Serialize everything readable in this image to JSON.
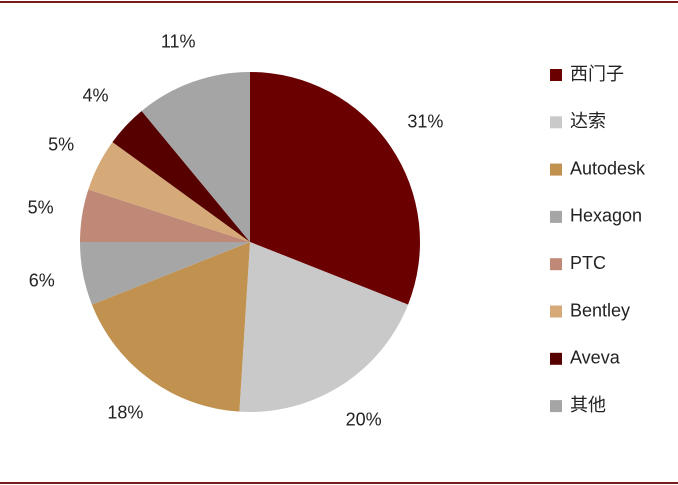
{
  "chart_data": {
    "type": "pie",
    "categories": [
      "西门子",
      "达索",
      "Autodesk",
      "Hexagon",
      "PTC",
      "Bentley",
      "Aveva",
      "其他"
    ],
    "values": [
      31,
      20,
      18,
      6,
      5,
      5,
      4,
      11
    ],
    "value_labels": [
      "31%",
      "20%",
      "18%",
      "6%",
      "5%",
      "5%",
      "4%",
      "11%"
    ],
    "colors": [
      "#6b0000",
      "#c9c9c9",
      "#c0914f",
      "#a6a6a6",
      "#bf8877",
      "#d5aa78",
      "#560000",
      "#a5a5a5"
    ],
    "legend": "right"
  }
}
